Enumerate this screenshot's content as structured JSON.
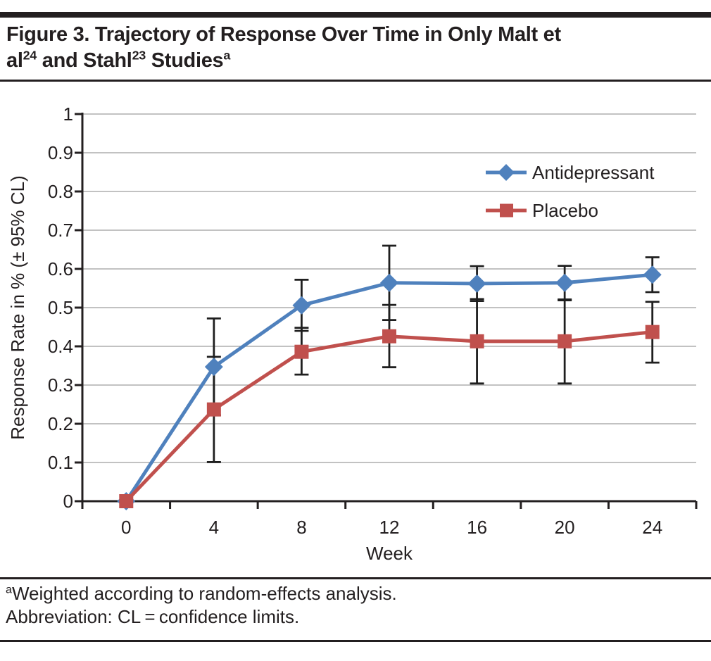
{
  "header": {
    "title_line1": "Figure 3. Trajectory of Response Over Time in Only Malt et",
    "title_line2_parts": {
      "a1": "al",
      "s1": "24",
      "a2": " and Stahl",
      "s2": "23",
      "a3": " Studies",
      "s3": "a"
    }
  },
  "footnotes": {
    "sup": "a",
    "line1": "Weighted according to random-effects analysis.",
    "line2": "Abbreviation: CL = confidence limits."
  },
  "chart_data": {
    "type": "line",
    "x": [
      0,
      4,
      8,
      12,
      16,
      20,
      24
    ],
    "x_tick_labels": [
      "0",
      "4",
      "8",
      "12",
      "16",
      "20",
      "24"
    ],
    "xlabel": "Week",
    "ylabel": "Response Rate in % (± 95% CL)",
    "ylim": [
      0,
      1
    ],
    "ytick_step": 0.1,
    "y_tick_labels": [
      "0",
      "0.1",
      "0.2",
      "0.3",
      "0.4",
      "0.5",
      "0.6",
      "0.7",
      "0.8",
      "0.9",
      "1"
    ],
    "grid": "horizontal",
    "legend_position": "upper-right-inside",
    "error_bar_type": "±95% confidence limits",
    "series": [
      {
        "name": "Antidepressant",
        "color": "#4f81bd",
        "marker": "diamond",
        "values": [
          0,
          0.347,
          0.506,
          0.564,
          0.562,
          0.564,
          0.585
        ],
        "ci_low": [
          null,
          0.222,
          0.44,
          0.468,
          0.517,
          0.519,
          0.54
        ],
        "ci_high": [
          null,
          0.472,
          0.572,
          0.66,
          0.607,
          0.608,
          0.63
        ]
      },
      {
        "name": "Placebo",
        "color": "#c0504d",
        "marker": "square",
        "values": [
          0,
          0.237,
          0.386,
          0.426,
          0.413,
          0.413,
          0.437
        ],
        "ci_low": [
          null,
          0.101,
          0.327,
          0.346,
          0.304,
          0.304,
          0.358
        ],
        "ci_high": [
          null,
          0.373,
          0.448,
          0.507,
          0.522,
          0.521,
          0.515
        ]
      }
    ],
    "colors": {
      "axis": "#231f20",
      "grid": "#9e9e9e",
      "error_bar": "#1f1f1f",
      "text": "#231f20"
    }
  }
}
